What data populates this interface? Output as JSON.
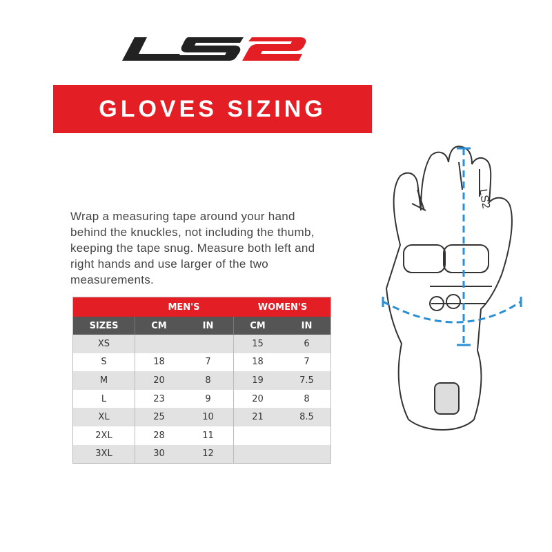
{
  "logo": {
    "text": "LS2",
    "colors": {
      "ls": "#222222",
      "two": "#e31e24"
    }
  },
  "banner": {
    "title": "GLOVES SIZING",
    "color": "#e31e24"
  },
  "intro": "Wrap a measuring tape around your hand behind the knuckles, not including the thumb, keeping the tape snug. Measure both left and right hands and use larger of the two measurements.",
  "table": {
    "groups": [
      "MEN'S",
      "WOMEN'S"
    ],
    "headers": [
      "SIZES",
      "CM",
      "IN",
      "CM",
      "IN"
    ],
    "rows": [
      [
        "XS",
        "",
        "",
        "15",
        "6"
      ],
      [
        "S",
        "18",
        "7",
        "18",
        "7"
      ],
      [
        "M",
        "20",
        "8",
        "19",
        "7.5"
      ],
      [
        "L",
        "23",
        "9",
        "20",
        "8"
      ],
      [
        "XL",
        "25",
        "10",
        "21",
        "8.5"
      ],
      [
        "2XL",
        "28",
        "11",
        "",
        ""
      ],
      [
        "3XL",
        "30",
        "12",
        "",
        ""
      ]
    ]
  },
  "illustration": {
    "logo_text": "LS2",
    "measure_color": "#2a8fd4"
  }
}
